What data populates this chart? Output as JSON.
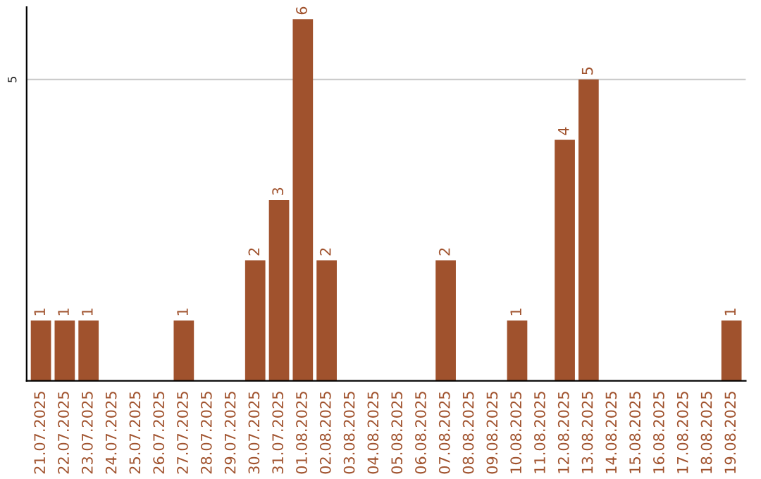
{
  "chart_data": {
    "type": "bar",
    "categories": [
      "21.07.2025",
      "22.07.2025",
      "23.07.2025",
      "24.07.2025",
      "25.07.2025",
      "26.07.2025",
      "27.07.2025",
      "28.07.2025",
      "29.07.2025",
      "30.07.2025",
      "31.07.2025",
      "01.08.2025",
      "02.08.2025",
      "03.08.2025",
      "04.08.2025",
      "05.08.2025",
      "06.08.2025",
      "07.08.2025",
      "08.08.2025",
      "09.08.2025",
      "10.08.2025",
      "11.08.2025",
      "12.08.2025",
      "13.08.2025",
      "14.08.2025",
      "15.08.2025",
      "16.08.2025",
      "17.08.2025",
      "18.08.2025",
      "19.08.2025"
    ],
    "values": [
      1,
      1,
      1,
      0,
      0,
      0,
      1,
      0,
      0,
      2,
      3,
      6,
      2,
      0,
      0,
      0,
      0,
      2,
      0,
      0,
      1,
      0,
      4,
      5,
      0,
      0,
      0,
      0,
      0,
      1
    ],
    "value_labels": [
      "1",
      "1",
      "1",
      null,
      null,
      null,
      "1",
      null,
      null,
      "2",
      "3",
      "6",
      "2",
      null,
      null,
      null,
      null,
      "2",
      null,
      null,
      "1",
      null,
      "4",
      "5",
      null,
      null,
      null,
      null,
      null,
      "1"
    ],
    "color": "#a0522d",
    "ylim": [
      0,
      6.2
    ],
    "yticks": [
      5
    ],
    "grid": "y"
  }
}
